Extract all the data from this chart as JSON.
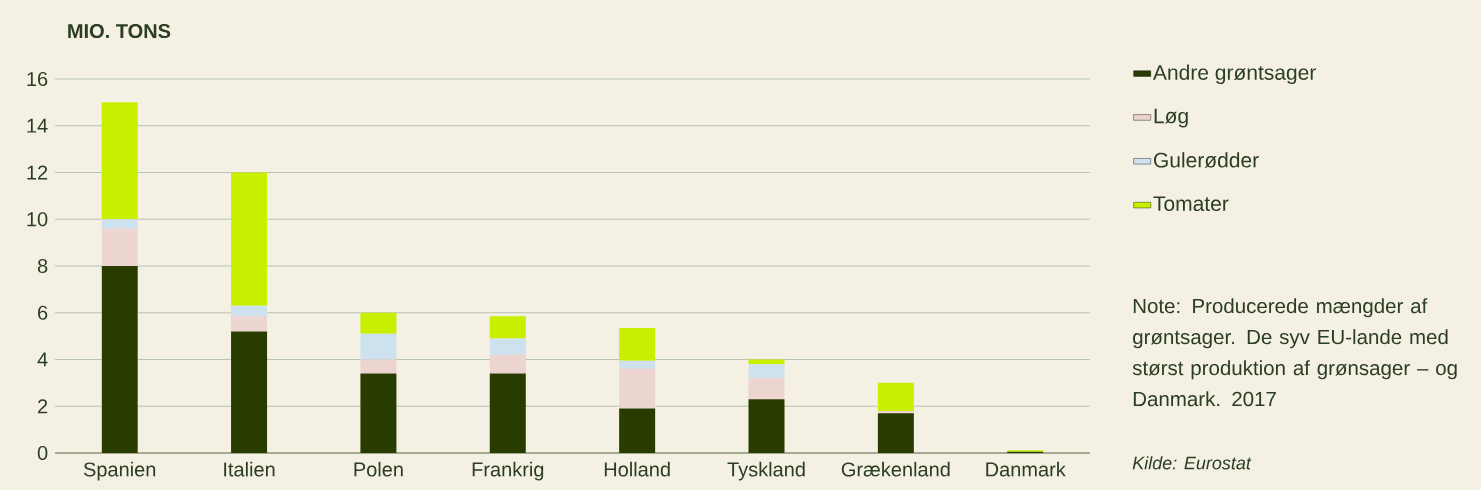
{
  "chart_data": {
    "type": "bar",
    "stacked": true,
    "ylabel": "MIO. TONS",
    "categories": [
      "Spanien",
      "Italien",
      "Polen",
      "Frankrig",
      "Holland",
      "Tyskland",
      "Grækenland",
      "Danmark"
    ],
    "series": [
      {
        "name": "Andre grøntsager",
        "color": "#283c00",
        "values": [
          8.0,
          5.2,
          3.4,
          3.4,
          1.9,
          2.3,
          1.7,
          0.05
        ]
      },
      {
        "name": "Løg",
        "color": "#ecd4d0",
        "values": [
          1.6,
          0.65,
          0.6,
          0.8,
          1.7,
          0.9,
          0.1,
          null
        ]
      },
      {
        "name": "Gulerødder",
        "color": "#cde1ee",
        "values": [
          0.4,
          0.45,
          1.1,
          0.7,
          0.35,
          0.6,
          0,
          null
        ]
      },
      {
        "name": "Tomater",
        "color": "#c8ef00",
        "values": [
          5.0,
          5.7,
          0.9,
          0.95,
          1.4,
          0.2,
          1.2,
          0.07
        ]
      }
    ],
    "ylim": [
      0,
      16
    ],
    "yticks": [
      0,
      2,
      4,
      6,
      8,
      10,
      12,
      14,
      16
    ],
    "grid": "y",
    "legend": "right",
    "annotations": [
      "Note: Producerede mængder af grøntsager. De syv EU-lande med størst produktion af grønsager – og Danmark. 2017",
      "Kilde: Eurostat"
    ]
  }
}
